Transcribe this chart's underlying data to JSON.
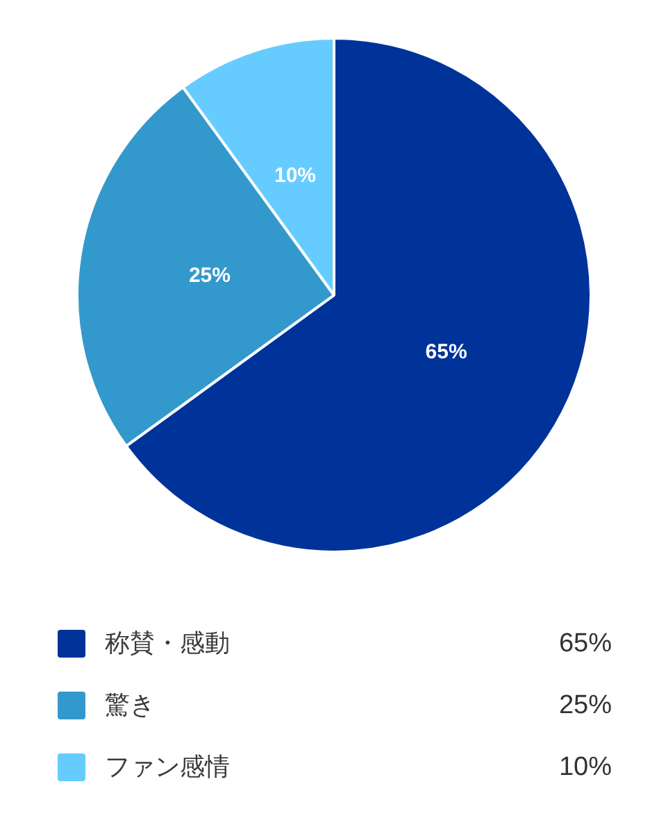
{
  "chart_data": {
    "type": "pie",
    "categories": [
      "称賛・感動",
      "驚き",
      "ファン感情"
    ],
    "values": [
      65,
      25,
      10
    ],
    "colors": [
      "#003399",
      "#3399cc",
      "#66ccff"
    ],
    "value_labels": [
      "65%",
      "25%",
      "10%"
    ],
    "legend": "bottom"
  }
}
